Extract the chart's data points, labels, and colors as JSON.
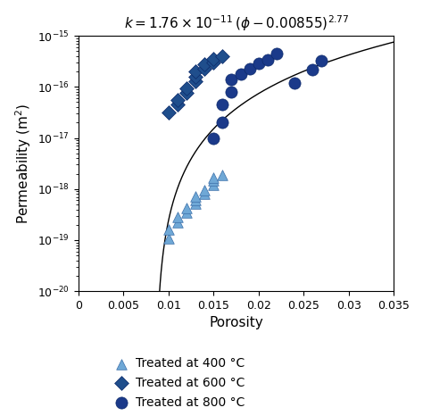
{
  "title": "$k = 1.76 \\times 10^{-11} \\, (\\phi -0.00855)^{2.77}$",
  "xlabel": "Porosity",
  "ylabel": "Permeability (m$^2$)",
  "xlim": [
    0,
    0.035
  ],
  "ylim": [
    1e-20,
    1e-15
  ],
  "xticks": [
    0,
    0.005,
    0.01,
    0.015,
    0.02,
    0.025,
    0.03,
    0.035
  ],
  "xtick_labels": [
    "0",
    "0.005",
    "0.01",
    "0.015",
    "0.02",
    "0.025",
    "0.03",
    "0.035"
  ],
  "tri_color": "#6fa8d6",
  "diamond_color": "#1f4e8c",
  "circle_color": "#1b3a8a",
  "triangles_x": [
    0.01,
    0.01,
    0.011,
    0.011,
    0.012,
    0.012,
    0.013,
    0.013,
    0.013,
    0.014,
    0.014,
    0.015,
    0.015,
    0.015,
    0.016
  ],
  "triangles_y": [
    1.1e-19,
    1.6e-19,
    2.2e-19,
    2.8e-19,
    3.5e-19,
    4.3e-19,
    5.2e-19,
    6.2e-19,
    7.2e-19,
    8e-19,
    9.5e-19,
    1.2e-18,
    1.45e-18,
    1.65e-18,
    1.9e-18
  ],
  "diamonds_x": [
    0.01,
    0.011,
    0.011,
    0.012,
    0.012,
    0.013,
    0.013,
    0.013,
    0.014,
    0.014,
    0.015,
    0.015,
    0.016
  ],
  "diamonds_y": [
    3.2e-17,
    4.5e-17,
    5.5e-17,
    7.5e-17,
    9.5e-17,
    1.3e-16,
    1.6e-16,
    2e-16,
    2.3e-16,
    2.8e-16,
    3e-16,
    3.5e-16,
    3.9e-16
  ],
  "circles_x": [
    0.015,
    0.016,
    0.016,
    0.017,
    0.017,
    0.018,
    0.019,
    0.02,
    0.021,
    0.022,
    0.024,
    0.026,
    0.027
  ],
  "circles_y": [
    1e-17,
    2e-17,
    4.5e-17,
    8e-17,
    1.4e-16,
    1.8e-16,
    2.3e-16,
    2.9e-16,
    3.4e-16,
    4.5e-16,
    1.2e-16,
    2.2e-16,
    3.2e-16
  ],
  "fit_A": 1.76e-11,
  "fit_phi0": 0.00855,
  "fit_n": 2.77,
  "legend_labels": [
    "Treated at 400 °C",
    "Treated at 600 °C",
    "Treated at 800 °C"
  ],
  "background_color": "#ffffff"
}
